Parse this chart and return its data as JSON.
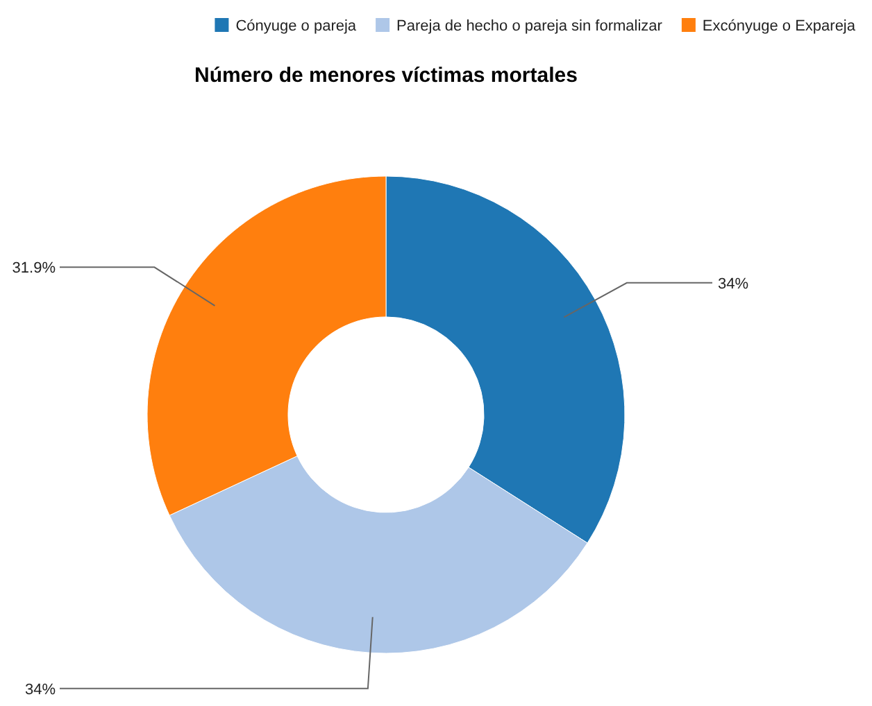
{
  "chart_data": {
    "type": "donut",
    "title": "Número de menores víctimas mortales",
    "categories": [
      "Cónyuge o pareja",
      "Pareja de hecho o pareja sin formalizar",
      "Excónyuge o Expareja"
    ],
    "values": [
      34,
      34,
      31.9
    ],
    "colors": [
      "#1f77b4",
      "#aec7e8",
      "#ff7f0e"
    ],
    "value_labels": [
      "34%",
      "34%",
      "31.9%"
    ],
    "legend": "top"
  }
}
